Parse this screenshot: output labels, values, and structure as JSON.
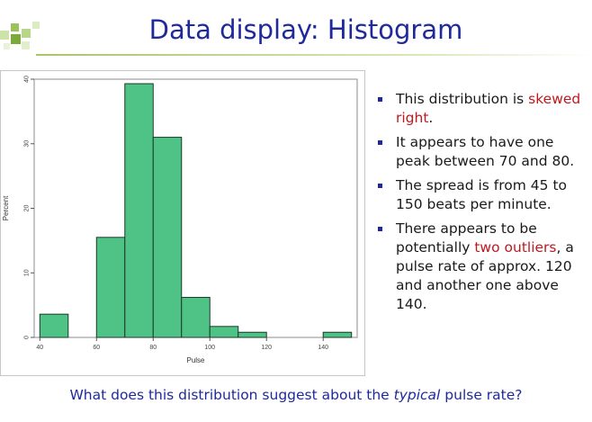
{
  "title": "Data display: Histogram",
  "chart_data": {
    "type": "histogram",
    "xlabel": "Pulse",
    "ylabel": "Percent",
    "xlim": [
      38,
      152
    ],
    "ylim": [
      0,
      40
    ],
    "xticks": [
      40,
      60,
      80,
      100,
      120,
      140
    ],
    "yticks": [
      0,
      10,
      20,
      30,
      40
    ],
    "bin_edges": [
      40,
      50,
      60,
      70,
      80,
      90,
      100,
      110,
      120,
      130,
      140,
      150
    ],
    "values": [
      3.6,
      0,
      15.5,
      39.3,
      31.0,
      6.2,
      1.7,
      0.8,
      0,
      0,
      0.8
    ],
    "colors": {
      "bar_fill": "#4fc286",
      "bar_stroke": "#1c3a2a"
    }
  },
  "bullets": [
    {
      "parts": [
        {
          "text": "This distribution is "
        },
        {
          "text": "skewed right",
          "highlight": true
        },
        {
          "text": "."
        }
      ]
    },
    {
      "parts": [
        {
          "text": "It appears to have one peak between 70 and 80."
        }
      ]
    },
    {
      "parts": [
        {
          "text": "The spread is from 45 to 150 beats per minute."
        }
      ]
    },
    {
      "parts": [
        {
          "text": "There appears to be potentially "
        },
        {
          "text": "two outliers",
          "highlight": true
        },
        {
          "text": ", a pulse rate of approx. 120 and another one above 140."
        }
      ]
    }
  ],
  "question": {
    "before": "What does this distribution suggest about the ",
    "emphasis": "typical",
    "after": " pulse rate?"
  },
  "colors": {
    "title": "#1f2a9a",
    "highlight": "#c0181e",
    "accent_green": "#a6c66a"
  }
}
